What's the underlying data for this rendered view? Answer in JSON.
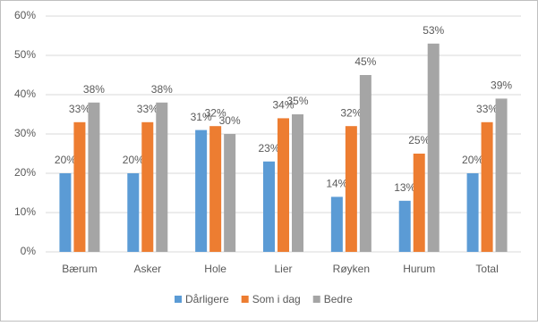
{
  "chart_data": {
    "type": "bar",
    "categories": [
      "Bærum",
      "Asker",
      "Hole",
      "Lier",
      "Røyken",
      "Hurum",
      "Total"
    ],
    "series": [
      {
        "name": "Dårligere",
        "color": "#5b9bd5",
        "values": [
          20,
          20,
          31,
          23,
          14,
          13,
          20
        ],
        "value_labels": [
          "20%",
          "20%",
          "31%",
          "23%",
          "14%",
          "13%",
          "20%"
        ]
      },
      {
        "name": "Som i dag",
        "color": "#ed7d31",
        "values": [
          33,
          33,
          32,
          34,
          32,
          25,
          33
        ],
        "value_labels": [
          "33%",
          "33%",
          "32%",
          "34%",
          "32%",
          "25%",
          "33%"
        ]
      },
      {
        "name": "Bedre",
        "color": "#a5a5a5",
        "values": [
          38,
          38,
          30,
          35,
          45,
          53,
          39
        ],
        "value_labels": [
          "38%",
          "38%",
          "30%",
          "35%",
          "45%",
          "53%",
          "39%"
        ]
      }
    ],
    "ylim": [
      0,
      60
    ],
    "yticks": [
      {
        "value": 0,
        "label": "0%"
      },
      {
        "value": 10,
        "label": "10%"
      },
      {
        "value": 20,
        "label": "20%"
      },
      {
        "value": 30,
        "label": "30%"
      },
      {
        "value": 40,
        "label": "40%"
      },
      {
        "value": 50,
        "label": "50%"
      },
      {
        "value": 60,
        "label": "60%"
      }
    ],
    "grid": true,
    "legend": "bottom"
  }
}
